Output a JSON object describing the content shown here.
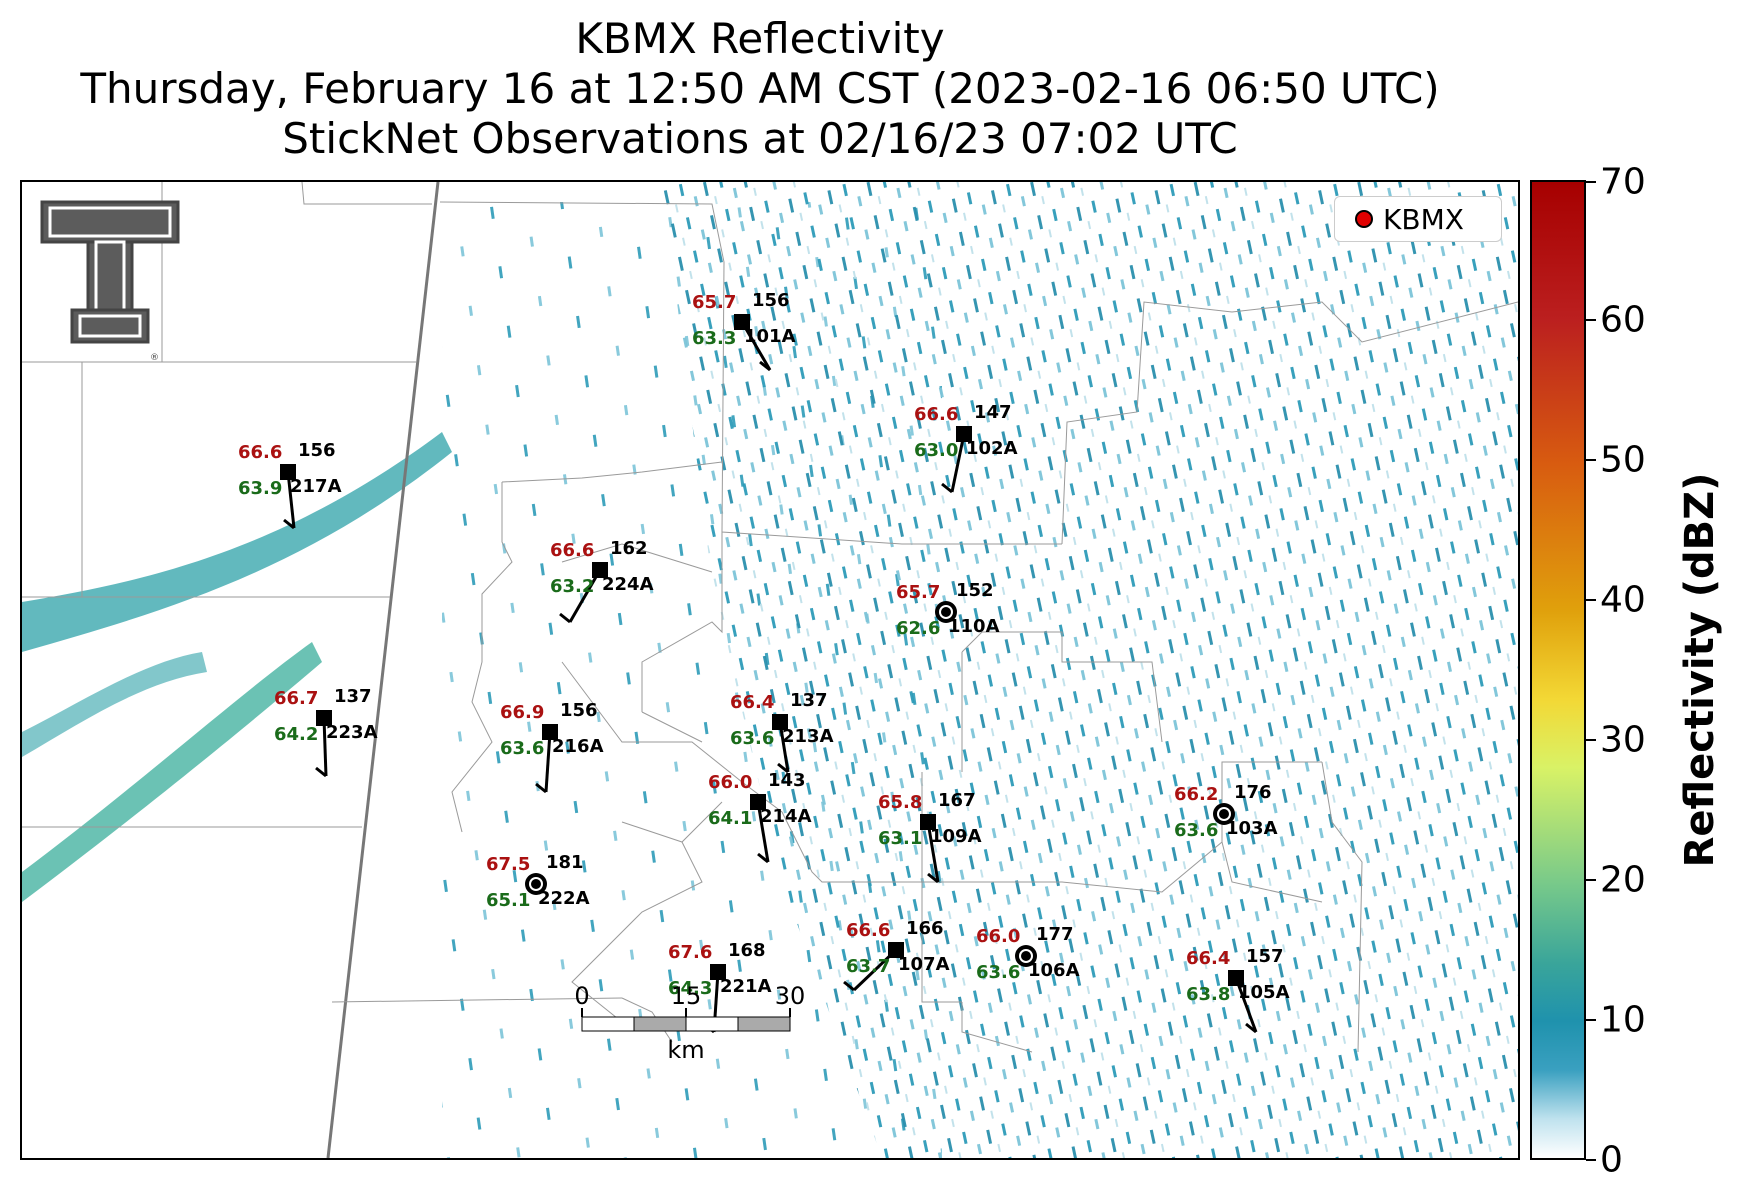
{
  "title": {
    "line1": "KBMX Reflectivity",
    "line2": "Thursday, February 16 at 12:50 AM CST (2023-02-16 06:50 UTC)",
    "line3": "StickNet Observations at 02/16/23 07:02 UTC"
  },
  "legend": {
    "label": "KBMX",
    "marker_color": "#e00000"
  },
  "colorbar": {
    "title": "Reflectivity (dBZ)",
    "ticks": [
      "0",
      "10",
      "20",
      "30",
      "40",
      "50",
      "60",
      "70"
    ]
  },
  "scale_bar": {
    "labels": [
      "0",
      "15",
      "30"
    ],
    "unit": "km"
  },
  "logo": {
    "name": "Texas Tech double-T logo"
  },
  "stations": [
    {
      "id": "101A",
      "temp": "65.7",
      "dew": "63.3",
      "dir": "156"
    },
    {
      "id": "102A",
      "temp": "66.6",
      "dew": "63.0",
      "dir": "147"
    },
    {
      "id": "217A",
      "temp": "66.6",
      "dew": "63.9",
      "dir": "156"
    },
    {
      "id": "224A",
      "temp": "66.6",
      "dew": "63.2",
      "dir": "162"
    },
    {
      "id": "110A",
      "temp": "65.7",
      "dew": "62.6",
      "dir": "152"
    },
    {
      "id": "223A",
      "temp": "66.7",
      "dew": "64.2",
      "dir": "137"
    },
    {
      "id": "216A",
      "temp": "66.9",
      "dew": "63.6",
      "dir": "156"
    },
    {
      "id": "213A",
      "temp": "66.4",
      "dew": "63.6",
      "dir": "137"
    },
    {
      "id": "214A",
      "temp": "66.0",
      "dew": "64.1",
      "dir": "143"
    },
    {
      "id": "109A",
      "temp": "65.8",
      "dew": "63.1",
      "dir": "167"
    },
    {
      "id": "103A",
      "temp": "66.2",
      "dew": "63.6",
      "dir": "176"
    },
    {
      "id": "222A",
      "temp": "67.5",
      "dew": "65.1",
      "dir": "181"
    },
    {
      "id": "107A",
      "temp": "66.6",
      "dew": "63.7",
      "dir": "166"
    },
    {
      "id": "106A",
      "temp": "66.0",
      "dew": "63.6",
      "dir": "177"
    },
    {
      "id": "221A",
      "temp": "67.6",
      "dew": "64.3",
      "dir": "168"
    },
    {
      "id": "105A",
      "temp": "66.4",
      "dew": "63.8",
      "dir": "157"
    }
  ]
}
